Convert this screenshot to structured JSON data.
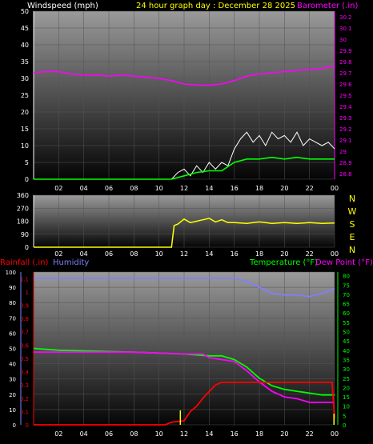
{
  "header": {
    "wind_label": "Windspeed (mph)",
    "title": "24 hour graph day : December 28 2025",
    "baro_label": "Barometer (.in)"
  },
  "middle": {
    "compass": [
      "N",
      "W",
      "S",
      "E",
      "N"
    ]
  },
  "bottom": {
    "rain_label": "Rainfall (.in)",
    "humidity_label": "Humidity",
    "temp_label": "Temperature (°F)",
    "dew_label": "Dew Point (°F)"
  },
  "colors": {
    "wind": "#ffffff",
    "wind_avg": "#00ff00",
    "baro": "#ff00ff",
    "dir": "#ffff00",
    "rain": "#ff0000",
    "humidity": "#7f7fff",
    "temp": "#00ff00",
    "dew": "#ff00ff",
    "axis_yellow": "#ffff00"
  },
  "chart_data": [
    {
      "type": "line",
      "id": "wind-baro",
      "x_ticks": [
        "02",
        "04",
        "06",
        "08",
        "10",
        "12",
        "14",
        "16",
        "18",
        "20",
        "22",
        "00"
      ],
      "xlim": [
        0,
        24
      ],
      "y_ticks_left": [
        "0",
        "5",
        "10",
        "15",
        "20",
        "25",
        "30",
        "35",
        "40",
        "45",
        "50"
      ],
      "ylim_left": [
        0,
        50
      ],
      "y_ticks_right": [
        "28.8",
        "28.9",
        "29",
        "29.1",
        "29.2",
        "29.3",
        "29.4",
        "29.5",
        "29.6",
        "29.7",
        "29.8",
        "29.9",
        "30",
        "30.1",
        "30.2"
      ],
      "ylim_right": [
        28.75,
        30.25
      ],
      "series": [
        {
          "axis": "left",
          "color": "#ffffff",
          "values": [
            [
              0,
              0
            ],
            [
              11,
              0
            ],
            [
              11.5,
              2
            ],
            [
              12,
              3
            ],
            [
              12.5,
              1
            ],
            [
              13,
              4
            ],
            [
              13.5,
              2
            ],
            [
              14,
              5
            ],
            [
              14.5,
              3
            ],
            [
              15,
              5
            ],
            [
              15.5,
              4
            ],
            [
              16,
              9
            ],
            [
              16.5,
              12
            ],
            [
              17,
              14
            ],
            [
              17.5,
              11
            ],
            [
              18,
              13
            ],
            [
              18.5,
              10
            ],
            [
              19,
              14
            ],
            [
              19.5,
              12
            ],
            [
              20,
              13
            ],
            [
              20.5,
              11
            ],
            [
              21,
              14
            ],
            [
              21.5,
              10
            ],
            [
              22,
              12
            ],
            [
              22.5,
              11
            ],
            [
              23,
              10
            ],
            [
              23.5,
              11
            ],
            [
              24,
              9
            ]
          ]
        },
        {
          "axis": "left",
          "color": "#00ff00",
          "values": [
            [
              0,
              0
            ],
            [
              11,
              0
            ],
            [
              12,
              1
            ],
            [
              13,
              2
            ],
            [
              14,
              2.5
            ],
            [
              15,
              2.5
            ],
            [
              16,
              5
            ],
            [
              17,
              6
            ],
            [
              18,
              6
            ],
            [
              19,
              6.5
            ],
            [
              20,
              6
            ],
            [
              21,
              6.5
            ],
            [
              22,
              6
            ],
            [
              23,
              6
            ],
            [
              24,
              6
            ]
          ]
        },
        {
          "axis": "right",
          "color": "#ff00ff",
          "values": [
            [
              0,
              29.7
            ],
            [
              1,
              29.71
            ],
            [
              2,
              29.71
            ],
            [
              3,
              29.69
            ],
            [
              4,
              29.68
            ],
            [
              5,
              29.68
            ],
            [
              6,
              29.67
            ],
            [
              7,
              29.68
            ],
            [
              8,
              29.67
            ],
            [
              9,
              29.66
            ],
            [
              10,
              29.65
            ],
            [
              11,
              29.63
            ],
            [
              12,
              29.6
            ],
            [
              13,
              29.59
            ],
            [
              14,
              29.59
            ],
            [
              15,
              29.6
            ],
            [
              16,
              29.63
            ],
            [
              17,
              29.67
            ],
            [
              18,
              29.69
            ],
            [
              19,
              29.7
            ],
            [
              20,
              29.71
            ],
            [
              21,
              29.72
            ],
            [
              22,
              29.73
            ],
            [
              23,
              29.74
            ],
            [
              24,
              29.76
            ]
          ]
        }
      ]
    },
    {
      "type": "line",
      "id": "direction",
      "x_ticks": [
        "02",
        "04",
        "06",
        "08",
        "10",
        "12",
        "14",
        "16",
        "18",
        "20",
        "22",
        "00"
      ],
      "xlim": [
        0,
        24
      ],
      "y_ticks_left": [
        "0",
        "90",
        "180",
        "270",
        "360"
      ],
      "ylim_left": [
        0,
        360
      ],
      "series": [
        {
          "color": "#ffff00",
          "values": [
            [
              0,
              0
            ],
            [
              10,
              0
            ],
            [
              11,
              0
            ],
            [
              11.2,
              150
            ],
            [
              11.5,
              160
            ],
            [
              12,
              195
            ],
            [
              12.5,
              170
            ],
            [
              13,
              180
            ],
            [
              13.5,
              190
            ],
            [
              14,
              200
            ],
            [
              14.5,
              175
            ],
            [
              15,
              190
            ],
            [
              15.5,
              170
            ],
            [
              16,
              170
            ],
            [
              17,
              165
            ],
            [
              18,
              175
            ],
            [
              19,
              165
            ],
            [
              20,
              170
            ],
            [
              21,
              165
            ],
            [
              22,
              170
            ],
            [
              23,
              165
            ],
            [
              24,
              168
            ]
          ]
        }
      ]
    },
    {
      "type": "line",
      "id": "rain-hum-temp",
      "x_ticks": [
        "02",
        "04",
        "06",
        "08",
        "10",
        "12",
        "14",
        "16",
        "18",
        "20",
        "22",
        "00"
      ],
      "xlim": [
        0,
        24
      ],
      "y_ticks_hum": [
        "0",
        "10",
        "20",
        "30",
        "40",
        "50",
        "60",
        "70",
        "80",
        "90",
        "100"
      ],
      "ylim_hum": [
        0,
        100
      ],
      "y_ticks_rain": [
        "0",
        "0.1",
        "0.2",
        "0.3",
        "0.4",
        "0.5",
        "0.6",
        "0.7",
        "0.8",
        "0.9",
        "1",
        "1.1"
      ],
      "ylim_rain": [
        0,
        1.15
      ],
      "y_ticks_temp": [
        "0",
        "5",
        "10",
        "15",
        "20",
        "25",
        "30",
        "35",
        "40",
        "45",
        "50",
        "55",
        "60",
        "65",
        "70",
        "75",
        "80"
      ],
      "ylim_temp": [
        0,
        82
      ],
      "series": [
        {
          "axis": "hum",
          "color": "#7f7fff",
          "values": [
            [
              0,
              96
            ],
            [
              4,
              96
            ],
            [
              8,
              96
            ],
            [
              12,
              96
            ],
            [
              16,
              96
            ],
            [
              17,
              94
            ],
            [
              18,
              90
            ],
            [
              19,
              86
            ],
            [
              20,
              85
            ],
            [
              21,
              85
            ],
            [
              22,
              84
            ],
            [
              23,
              86
            ],
            [
              24,
              89
            ]
          ]
        },
        {
          "axis": "temp",
          "color": "#00ff00",
          "values": [
            [
              0,
              41
            ],
            [
              2,
              40
            ],
            [
              8,
              39
            ],
            [
              12,
              38
            ],
            [
              14,
              37
            ],
            [
              15,
              37
            ],
            [
              16,
              35
            ],
            [
              17,
              31
            ],
            [
              18,
              25
            ],
            [
              19,
              21
            ],
            [
              20,
              19
            ],
            [
              21,
              18
            ],
            [
              22,
              17
            ],
            [
              23,
              16
            ],
            [
              24,
              16
            ]
          ]
        },
        {
          "axis": "temp",
          "color": "#ff00ff",
          "values": [
            [
              0,
              39
            ],
            [
              4,
              39
            ],
            [
              8,
              39
            ],
            [
              12,
              38
            ],
            [
              13.5,
              38
            ],
            [
              14,
              36
            ],
            [
              15,
              35
            ],
            [
              16,
              34
            ],
            [
              17,
              29
            ],
            [
              18,
              23
            ],
            [
              19,
              18
            ],
            [
              20,
              15
            ],
            [
              21,
              14
            ],
            [
              22,
              12
            ],
            [
              23,
              12
            ],
            [
              24,
              12
            ]
          ]
        },
        {
          "axis": "rain",
          "color": "#ff0000",
          "values": [
            [
              0,
              0
            ],
            [
              10.5,
              0
            ],
            [
              11,
              0.02
            ],
            [
              12,
              0.03
            ],
            [
              12.5,
              0.1
            ],
            [
              13,
              0.14
            ],
            [
              13.5,
              0.2
            ],
            [
              14,
              0.25
            ],
            [
              14.5,
              0.3
            ],
            [
              15,
              0.32
            ],
            [
              23.8,
              0.32
            ],
            [
              24,
              0.05
            ]
          ]
        }
      ]
    }
  ]
}
